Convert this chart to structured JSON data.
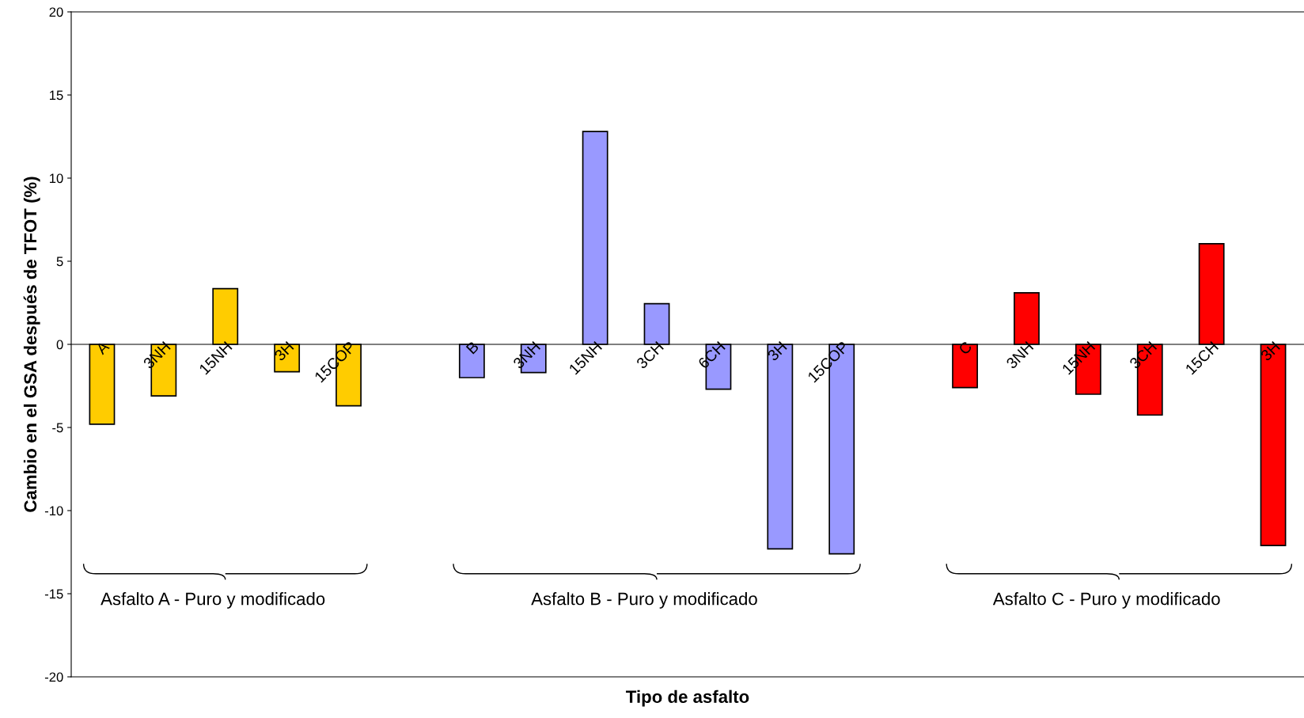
{
  "chart_data": {
    "type": "bar",
    "xlabel": "Tipo de asfalto",
    "ylabel": "Cambio en el GSA después de TFOT (%)",
    "categories": [
      "A",
      "3NH",
      "15NH",
      "3H",
      "15COP",
      null,
      "B",
      "3NH",
      "15NH",
      "3CH",
      "6CH",
      "3H",
      "15COP",
      null,
      "C",
      "3NH",
      "15NH",
      "3CH",
      "15CH",
      "3H"
    ],
    "values": [
      -4.8,
      -3.1,
      3.35,
      -1.65,
      -3.7,
      null,
      -2.0,
      -1.7,
      12.8,
      2.45,
      -2.7,
      -12.3,
      -12.6,
      null,
      -2.6,
      3.1,
      -3.0,
      -4.25,
      6.05,
      -12.1
    ],
    "colors": [
      "#ffcc00",
      "#ffcc00",
      "#ffcc00",
      "#ffcc00",
      "#ffcc00",
      null,
      "#9999ff",
      "#9999ff",
      "#9999ff",
      "#9999ff",
      "#9999ff",
      "#9999ff",
      "#9999ff",
      null,
      "#ff0000",
      "#ff0000",
      "#ff0000",
      "#ff0000",
      "#ff0000",
      "#ff0000"
    ],
    "ylim": [
      -20,
      20
    ],
    "yticks": [
      -20,
      -15,
      -10,
      -5,
      0,
      5,
      10,
      15,
      20
    ],
    "grid": false,
    "annotations": [
      "Asfalto A - Puro y modificado",
      "Asfalto B - Puro y modificado",
      "Asfalto C - Puro y modificado"
    ]
  }
}
